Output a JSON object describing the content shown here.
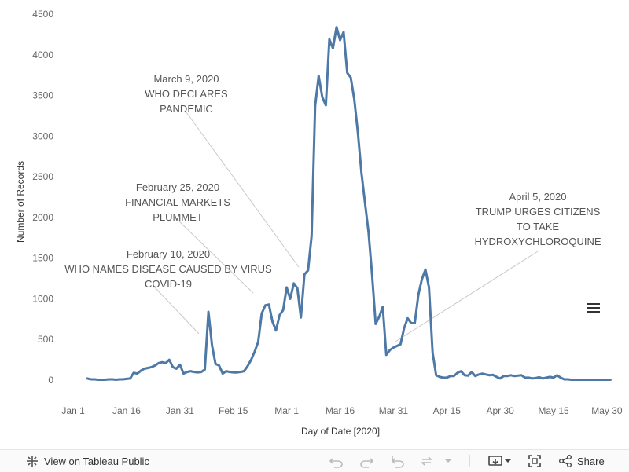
{
  "chart_data": {
    "type": "line",
    "xlabel": "Day of Date [2020]",
    "ylabel": "Number of Records",
    "ylim": [
      0,
      4500
    ],
    "xlim": [
      "2019-12-28",
      "2020-06-03"
    ],
    "yticks": [
      0,
      500,
      1000,
      1500,
      2000,
      2500,
      3000,
      3500,
      4000,
      4500
    ],
    "xticks": [
      {
        "date": "2020-01-01",
        "label": "Jan 1"
      },
      {
        "date": "2020-01-16",
        "label": "Jan 16"
      },
      {
        "date": "2020-01-31",
        "label": "Jan 31"
      },
      {
        "date": "2020-02-15",
        "label": "Feb 15"
      },
      {
        "date": "2020-03-01",
        "label": "Mar 1"
      },
      {
        "date": "2020-03-16",
        "label": "Mar 16"
      },
      {
        "date": "2020-03-31",
        "label": "Mar 31"
      },
      {
        "date": "2020-04-15",
        "label": "Apr 15"
      },
      {
        "date": "2020-04-30",
        "label": "Apr 30"
      },
      {
        "date": "2020-05-15",
        "label": "May 15"
      },
      {
        "date": "2020-05-30",
        "label": "May 30"
      }
    ],
    "grid": false,
    "color": "#4e79a7",
    "x": [
      "2020-01-05",
      "2020-01-06",
      "2020-01-07",
      "2020-01-08",
      "2020-01-09",
      "2020-01-10",
      "2020-01-11",
      "2020-01-12",
      "2020-01-13",
      "2020-01-14",
      "2020-01-15",
      "2020-01-16",
      "2020-01-17",
      "2020-01-18",
      "2020-01-19",
      "2020-01-20",
      "2020-01-21",
      "2020-01-22",
      "2020-01-23",
      "2020-01-24",
      "2020-01-25",
      "2020-01-26",
      "2020-01-27",
      "2020-01-28",
      "2020-01-29",
      "2020-01-30",
      "2020-01-31",
      "2020-02-01",
      "2020-02-02",
      "2020-02-03",
      "2020-02-04",
      "2020-02-05",
      "2020-02-06",
      "2020-02-07",
      "2020-02-08",
      "2020-02-09",
      "2020-02-10",
      "2020-02-11",
      "2020-02-12",
      "2020-02-13",
      "2020-02-14",
      "2020-02-15",
      "2020-02-16",
      "2020-02-17",
      "2020-02-18",
      "2020-02-19",
      "2020-02-20",
      "2020-02-21",
      "2020-02-22",
      "2020-02-23",
      "2020-02-24",
      "2020-02-25",
      "2020-02-26",
      "2020-02-27",
      "2020-02-28",
      "2020-02-29",
      "2020-03-01",
      "2020-03-02",
      "2020-03-03",
      "2020-03-04",
      "2020-03-05",
      "2020-03-06",
      "2020-03-07",
      "2020-03-08",
      "2020-03-09",
      "2020-03-10",
      "2020-03-11",
      "2020-03-12",
      "2020-03-13",
      "2020-03-14",
      "2020-03-15",
      "2020-03-16",
      "2020-03-17",
      "2020-03-18",
      "2020-03-19",
      "2020-03-20",
      "2020-03-21",
      "2020-03-22",
      "2020-03-23",
      "2020-03-24",
      "2020-03-25",
      "2020-03-26",
      "2020-03-27",
      "2020-03-28",
      "2020-03-29",
      "2020-03-30",
      "2020-03-31",
      "2020-04-01",
      "2020-04-02",
      "2020-04-03",
      "2020-04-04",
      "2020-04-05",
      "2020-04-06",
      "2020-04-07",
      "2020-04-08",
      "2020-04-09",
      "2020-04-10",
      "2020-04-11",
      "2020-04-12",
      "2020-04-13",
      "2020-04-14",
      "2020-04-15",
      "2020-04-16",
      "2020-04-17",
      "2020-04-18",
      "2020-04-19",
      "2020-04-20",
      "2020-04-21",
      "2020-04-22",
      "2020-04-23",
      "2020-04-24",
      "2020-04-25",
      "2020-04-26",
      "2020-04-27",
      "2020-04-28",
      "2020-04-29",
      "2020-04-30",
      "2020-05-01",
      "2020-05-02",
      "2020-05-03",
      "2020-05-04",
      "2020-05-05",
      "2020-05-06",
      "2020-05-07",
      "2020-05-08",
      "2020-05-09",
      "2020-05-10",
      "2020-05-11",
      "2020-05-12",
      "2020-05-13",
      "2020-05-14",
      "2020-05-15",
      "2020-05-16",
      "2020-05-17",
      "2020-05-18",
      "2020-05-19",
      "2020-05-20",
      "2020-05-21",
      "2020-05-22",
      "2020-05-23",
      "2020-05-24",
      "2020-05-25",
      "2020-05-26",
      "2020-05-27",
      "2020-05-28",
      "2020-05-29",
      "2020-05-30",
      "2020-05-31"
    ],
    "values": [
      20,
      10,
      10,
      5,
      5,
      5,
      10,
      10,
      5,
      10,
      10,
      15,
      20,
      90,
      80,
      115,
      140,
      150,
      160,
      180,
      210,
      220,
      210,
      250,
      160,
      140,
      190,
      80,
      100,
      110,
      100,
      95,
      100,
      130,
      840,
      430,
      200,
      180,
      80,
      110,
      100,
      95,
      95,
      100,
      110,
      170,
      250,
      350,
      470,
      820,
      920,
      930,
      720,
      610,
      800,
      860,
      1140,
      1000,
      1190,
      1130,
      770,
      1300,
      1350,
      1770,
      3370,
      3740,
      3480,
      3380,
      4190,
      4080,
      4340,
      4180,
      4280,
      3780,
      3720,
      3450,
      3050,
      2550,
      2180,
      1820,
      1300,
      690,
      780,
      900,
      310,
      370,
      400,
      420,
      440,
      640,
      760,
      700,
      700,
      1050,
      1240,
      1360,
      1140,
      340,
      60,
      40,
      30,
      30,
      50,
      50,
      90,
      110,
      60,
      55,
      100,
      50,
      70,
      80,
      70,
      60,
      65,
      40,
      20,
      50,
      50,
      60,
      50,
      55,
      60,
      30,
      30,
      20,
      25,
      35,
      20,
      30,
      40,
      30,
      60,
      30,
      10,
      10,
      5,
      5,
      5,
      5,
      5,
      5,
      5,
      5,
      5,
      5,
      5,
      5
    ],
    "annotations": [
      {
        "date": "2020-02-10",
        "lines": [
          "February 10, 2020",
          "WHO NAMES DISEASE CAUSED BY VIRUS",
          "COVID-19"
        ]
      },
      {
        "date": "2020-02-25",
        "lines": [
          "February 25, 2020",
          "FINANCIAL MARKETS",
          "PLUMMET"
        ]
      },
      {
        "date": "2020-03-09",
        "lines": [
          "March 9, 2020",
          "WHO DECLARES",
          "PANDEMIC"
        ]
      },
      {
        "date": "2020-04-05",
        "lines": [
          "April 5, 2020",
          "TRUMP URGES CITIZENS",
          "TO TAKE",
          "HYDROXYCHLOROQUINE"
        ]
      }
    ]
  },
  "toolbar": {
    "view_label": "View on Tableau Public",
    "share_label": "Share",
    "icons": [
      "tableau-logo-icon",
      "undo-icon",
      "redo-icon",
      "revert-icon",
      "refresh-icon",
      "download-icon",
      "fullscreen-icon",
      "share-icon"
    ]
  },
  "menu": {
    "icon": "hamburger-menu-icon"
  }
}
